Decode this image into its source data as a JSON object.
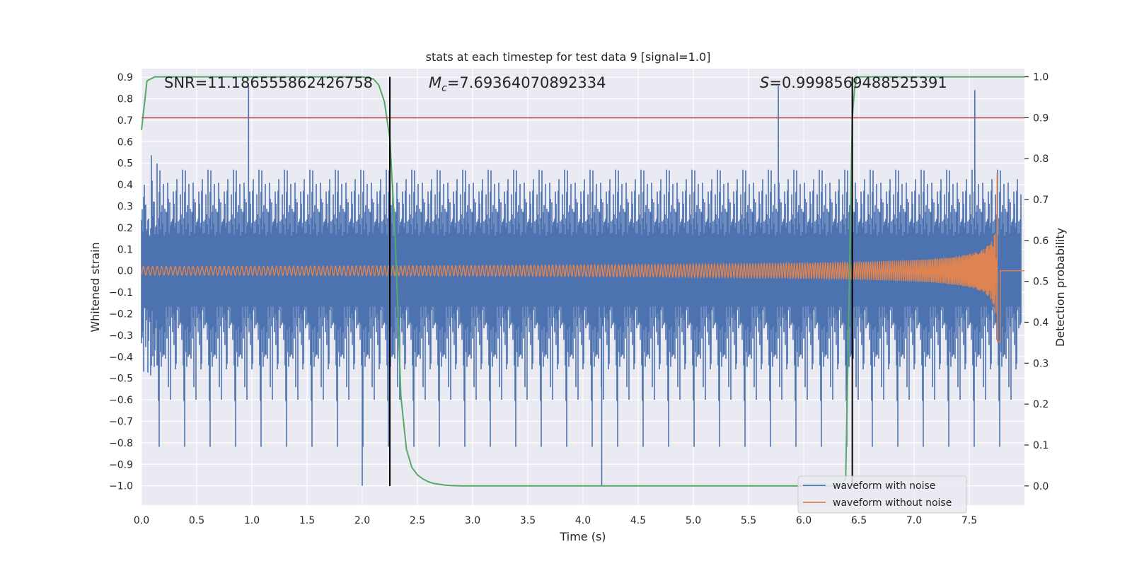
{
  "chart_data": {
    "type": "line",
    "title": "stats at each timestep for test data 9 [signal=1.0]",
    "xlabel": "Time (s)",
    "ylabel": "Whitened strain",
    "y2label": "Detection probability",
    "xlim": [
      0.0,
      8.0
    ],
    "ylim": [
      -1.09,
      0.94
    ],
    "y2lim": [
      -0.047,
      1.02
    ],
    "xticks": [
      "0.0",
      "0.5",
      "1.0",
      "1.5",
      "2.0",
      "2.5",
      "3.0",
      "3.5",
      "4.0",
      "4.5",
      "5.0",
      "5.5",
      "6.0",
      "6.5",
      "7.0",
      "7.5"
    ],
    "yticks": [
      "0.9",
      "0.8",
      "0.7",
      "0.6",
      "0.5",
      "0.4",
      "0.3",
      "0.2",
      "0.1",
      "0.0",
      "−0.1",
      "−0.2",
      "−0.3",
      "−0.4",
      "−0.5",
      "−0.6",
      "−0.7",
      "−0.8",
      "−0.9",
      "−1.0"
    ],
    "y2ticks": [
      "1.0",
      "0.9",
      "0.8",
      "0.7",
      "0.6",
      "0.5",
      "0.4",
      "0.3",
      "0.2",
      "0.1",
      "0.0"
    ],
    "annotations": {
      "snr": "SNR=11.186555862426758",
      "mc_symbol": "M",
      "mc_sub": "c",
      "mc_value": "=7.69364070892334",
      "s_symbol": "S",
      "s_value": "=0.9998569488525391"
    },
    "threshold": 0.9,
    "vlines": [
      2.25,
      6.44
    ],
    "series": [
      {
        "name": "waveform with noise",
        "color": "#4c72b0",
        "axis": "left",
        "kind": "noise",
        "typical_amplitude": 0.3,
        "peak_max": 0.86,
        "peak_min": -1.0
      },
      {
        "name": "waveform without noise",
        "color": "#dd8452",
        "axis": "left",
        "kind": "chirp",
        "start_amplitude": 0.02,
        "peak_amplitude": 0.38,
        "merger_time": 7.76,
        "min_value": -0.33
      },
      {
        "name": "detection probability",
        "color": "#55a868",
        "axis": "right",
        "x": [
          0.0,
          0.05,
          0.12,
          0.2,
          1.0,
          2.0,
          2.1,
          2.15,
          2.2,
          2.25,
          2.3,
          2.35,
          2.4,
          2.45,
          2.5,
          2.55,
          2.6,
          2.65,
          2.7,
          2.75,
          2.8,
          2.9,
          3.0,
          4.0,
          5.0,
          6.0,
          6.35,
          6.38,
          6.4,
          6.42,
          6.44,
          6.46,
          6.48,
          6.5,
          6.52,
          7.0,
          8.0
        ],
        "y": [
          0.87,
          0.99,
          1.0,
          1.0,
          1.0,
          1.0,
          0.995,
          0.98,
          0.94,
          0.85,
          0.6,
          0.22,
          0.09,
          0.045,
          0.027,
          0.017,
          0.01,
          0.006,
          0.004,
          0.002,
          0.001,
          0.0,
          0.0,
          0.0,
          0.0,
          0.0,
          0.0,
          0.02,
          0.3,
          0.6,
          0.9,
          0.97,
          1.0,
          1.0,
          1.0,
          1.0,
          1.0
        ]
      }
    ],
    "threshold_color": "#c44e52",
    "vline_color": "#000000",
    "legend": {
      "placement": "bottom-right",
      "entries": [
        "waveform with noise",
        "waveform without noise"
      ]
    }
  }
}
